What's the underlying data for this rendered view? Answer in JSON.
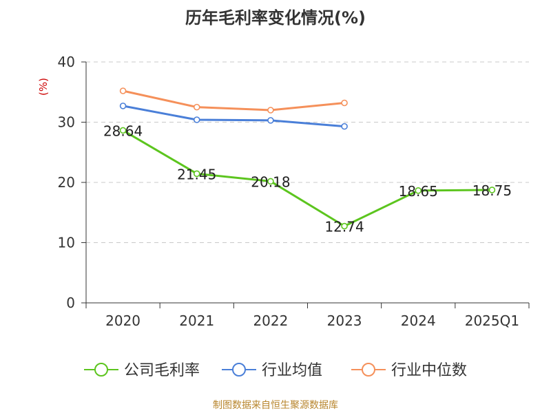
{
  "title": "历年毛利率变化情况(%)",
  "source": "制图数据来自恒生聚源数据库",
  "chart_data": {
    "type": "line",
    "title": "历年毛利率变化情况(%)",
    "ylabel": "(%)",
    "xlabel": "",
    "categories": [
      "2020",
      "2021",
      "2022",
      "2023",
      "2024",
      "2025Q1"
    ],
    "ylim": [
      0,
      40
    ],
    "yticks": [
      0,
      10,
      20,
      30,
      40
    ],
    "grid": true,
    "legend_position": "bottom",
    "series": [
      {
        "name": "公司毛利率",
        "color": "#5cc51e",
        "values": [
          28.64,
          21.45,
          20.18,
          12.74,
          18.65,
          18.75
        ],
        "labels": true
      },
      {
        "name": "行业均值",
        "color": "#4a7fd8",
        "values": [
          32.7,
          30.4,
          30.3,
          29.3,
          null,
          null
        ],
        "labels": false
      },
      {
        "name": "行业中位数",
        "color": "#f5905a",
        "values": [
          35.2,
          32.5,
          32.0,
          33.2,
          null,
          null
        ],
        "labels": false
      }
    ]
  }
}
